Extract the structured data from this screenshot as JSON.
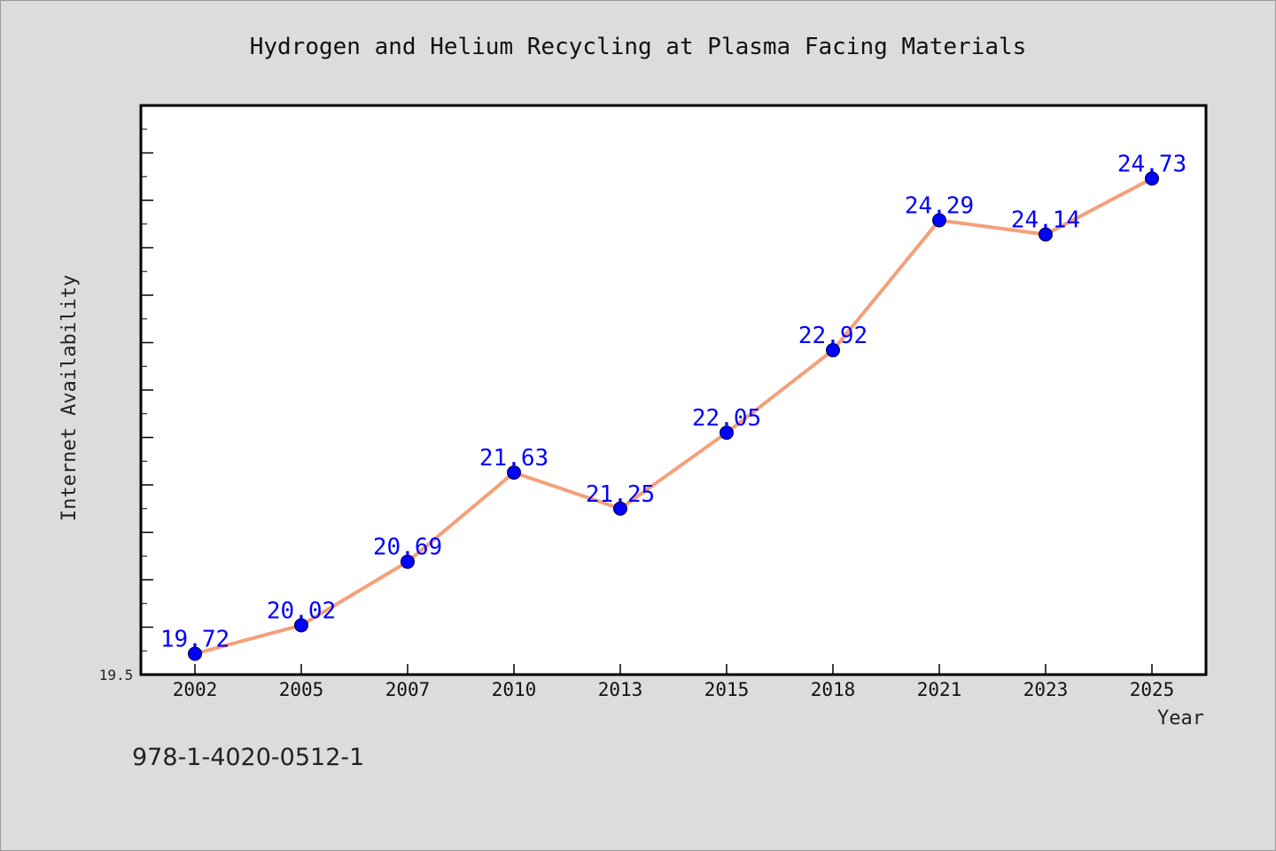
{
  "chart_data": {
    "type": "line",
    "title": "Hydrogen and Helium Recycling at Plasma Facing Materials",
    "xlabel": "Year",
    "ylabel": "Internet Availability",
    "categories": [
      "2002",
      "2005",
      "2007",
      "2010",
      "2013",
      "2015",
      "2018",
      "2021",
      "2023",
      "2025"
    ],
    "values": [
      19.72,
      20.02,
      20.69,
      21.63,
      21.25,
      22.05,
      22.92,
      24.29,
      24.14,
      24.73
    ],
    "ylim": [
      19.5,
      25.5
    ],
    "y_min_label": "19.5",
    "grid": false,
    "line_color": "#f4a07a",
    "marker_color": "#0000ff",
    "label_color": "#0000ff"
  },
  "footer": {
    "isbn": "978-1-4020-0512-1"
  }
}
